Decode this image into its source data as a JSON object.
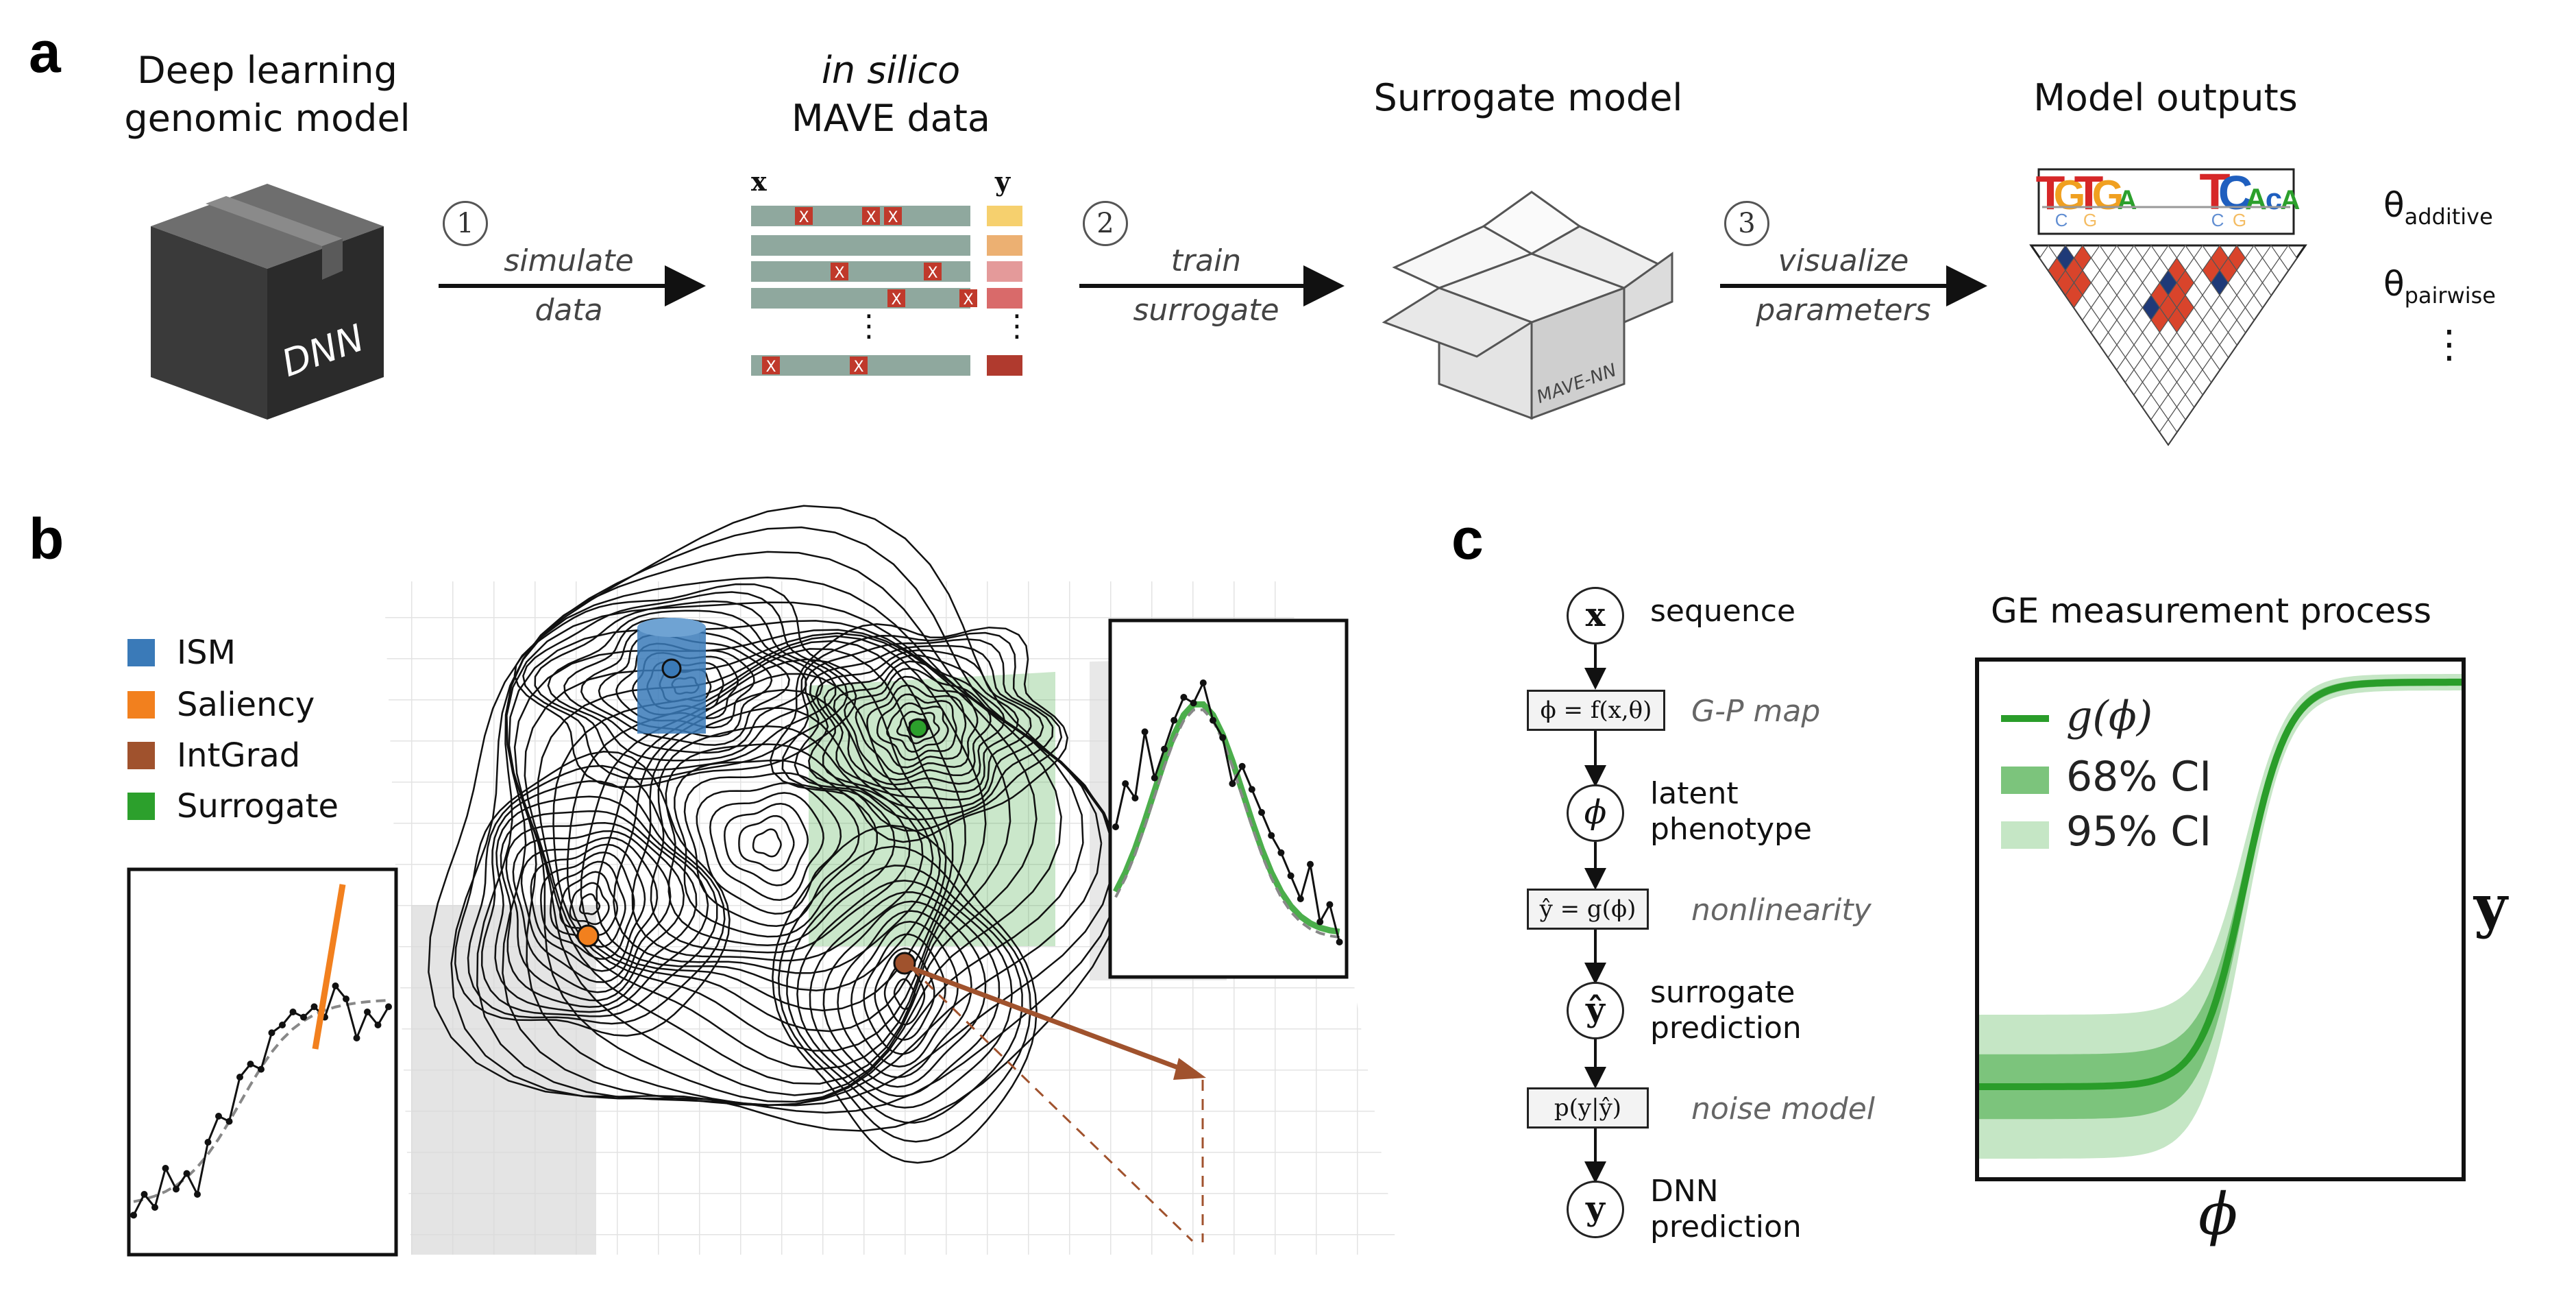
{
  "panels": {
    "a": "a",
    "b": "b",
    "c": "c"
  },
  "panel_a": {
    "dnn_title_line1": "Deep learning",
    "dnn_title_line2": "genomic model",
    "dnn_box_label": "DNN",
    "mave_title_line1": "in silico",
    "mave_title_line2": "MAVE data",
    "mave_x_label": "x",
    "mave_y_label": "y",
    "mutation_mark": "X",
    "surrogate_title": "Surrogate model",
    "surrogate_box_label": "MAVE-NN",
    "outputs_title": "Model outputs",
    "steps": [
      {
        "num": "1",
        "line1": "simulate",
        "line2": "data"
      },
      {
        "num": "2",
        "line1": "train",
        "line2": "surrogate"
      },
      {
        "num": "3",
        "line1": "visualize",
        "line2": "parameters"
      }
    ],
    "theta_symbol": "θ",
    "theta_additive_sub": "additive",
    "theta_pairwise_sub": "pairwise",
    "more_dots": "⋮",
    "logo_top_letters": [
      "T",
      "G",
      "T",
      "G",
      "A",
      "T",
      "C",
      "A",
      "c",
      "A"
    ],
    "logo_bottom_letters": [
      "C",
      "G",
      "C",
      "G"
    ],
    "colors": {
      "row_bar": "#8fa89e",
      "mutation": "#c0392b",
      "y_values": [
        "#f6d06e",
        "#ecb072",
        "#e49a9a",
        "#d96a6a",
        "#b03a2e"
      ],
      "heat_red": "#d9442b",
      "heat_blue": "#1f3a78"
    }
  },
  "panel_b": {
    "legend": [
      {
        "label": "ISM",
        "color": "#3a7ab8"
      },
      {
        "label": "Saliency",
        "color": "#f2801e"
      },
      {
        "label": "IntGrad",
        "color": "#a0522d"
      },
      {
        "label": "Surrogate",
        "color": "#2ca02c"
      }
    ]
  },
  "panel_c": {
    "flow": [
      {
        "symbol": "x",
        "label1": "sequence",
        "label2": ""
      },
      {
        "box": "ϕ = f(x,θ)",
        "note": "G-P map"
      },
      {
        "symbol": "ϕ",
        "label1": "latent",
        "label2": "phenotype"
      },
      {
        "box": "ŷ = g(ϕ)",
        "note": "nonlinearity"
      },
      {
        "symbol": "ŷ",
        "label1": "surrogate",
        "label2": "prediction"
      },
      {
        "box": "p(y|ŷ)",
        "note": "noise model"
      },
      {
        "symbol": "y",
        "label1": "DNN",
        "label2": "prediction"
      }
    ],
    "ge_title": "GE measurement process",
    "ge_legend": [
      {
        "label": "g(ϕ)",
        "color": "#2a9d2a"
      },
      {
        "label": "68% CI",
        "color": "#7cc47c"
      },
      {
        "label": "95% CI",
        "color": "#c5e6c5"
      }
    ],
    "x_axis_label": "ϕ",
    "y_axis_label": "y"
  }
}
